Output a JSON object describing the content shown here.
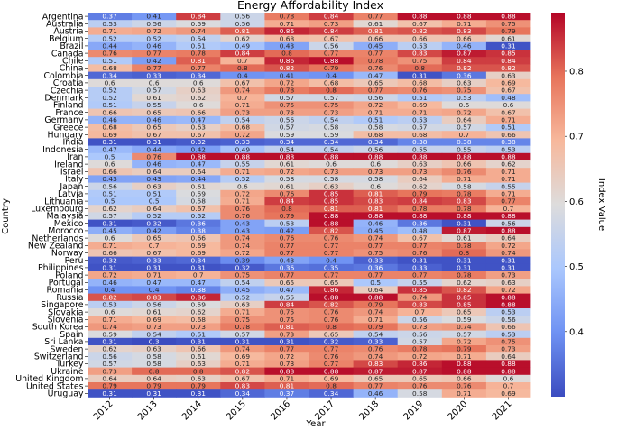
{
  "chart_data": {
    "type": "heatmap",
    "title": "Energy Affordability Index",
    "xlabel": "Year",
    "ylabel": "Country",
    "colorbar_label": "Index Value",
    "colorbar_ticks": [
      0.4,
      0.5,
      0.6,
      0.7,
      0.8
    ],
    "colorbar_tick_labels": [
      "0.4",
      "0.5",
      "0.6",
      "0.7",
      "0.8"
    ],
    "vmin": 0.3,
    "vmax": 0.89,
    "colormap": "coolwarm",
    "cmap_stops": [
      "#3b4cc0",
      "#6f92f3",
      "#aac7fd",
      "#dddcdc",
      "#f7b89c",
      "#e7745b",
      "#b40426"
    ],
    "years": [
      "2012",
      "2013",
      "2014",
      "2015",
      "2016",
      "2017",
      "2018",
      "2019",
      "2020",
      "2021"
    ],
    "countries": [
      "Argentina",
      "Australia",
      "Austria",
      "Belgium",
      "Brazil",
      "Canada",
      "Chile",
      "China",
      "Colombia",
      "Croatia",
      "Czechia",
      "Denmark",
      "Finland",
      "France",
      "Germany",
      "Greece",
      "Hungary",
      "India",
      "Indonesia",
      "Iran",
      "Ireland",
      "Israel",
      "Italy",
      "Japan",
      "Latvia",
      "Lithuania",
      "Luxembourg",
      "Malaysia",
      "Mexico",
      "Morocco",
      "Netherlands",
      "New Zealand",
      "Norway",
      "Peru",
      "Philippines",
      "Poland",
      "Portugal",
      "Romania",
      "Russia",
      "Singapore",
      "Slovakia",
      "Slovenia",
      "South Korea",
      "Spain",
      "Sri Lanka",
      "Sweden",
      "Switzerland",
      "Turkey",
      "Ukraine",
      "United Kingdom",
      "United States",
      "Uruguay"
    ],
    "values": [
      [
        0.37,
        0.41,
        0.84,
        0.56,
        0.78,
        0.84,
        0.77,
        0.88,
        0.88,
        0.88
      ],
      [
        0.53,
        0.56,
        0.59,
        0.56,
        0.71,
        0.73,
        0.61,
        0.67,
        0.71,
        0.75
      ],
      [
        0.71,
        0.72,
        0.74,
        0.81,
        0.86,
        0.84,
        0.81,
        0.82,
        0.83,
        0.79
      ],
      [
        0.52,
        0.52,
        0.54,
        0.62,
        0.68,
        0.67,
        0.66,
        0.66,
        0.66,
        0.61
      ],
      [
        0.44,
        0.46,
        0.51,
        0.49,
        0.43,
        0.56,
        0.45,
        0.53,
        0.46,
        0.31
      ],
      [
        0.76,
        0.77,
        0.78,
        0.84,
        0.8,
        0.77,
        0.77,
        0.83,
        0.87,
        0.85
      ],
      [
        0.51,
        0.42,
        0.81,
        0.7,
        0.86,
        0.88,
        0.78,
        0.75,
        0.84,
        0.84
      ],
      [
        0.68,
        0.77,
        0.77,
        0.8,
        0.82,
        0.79,
        0.76,
        0.8,
        0.82,
        0.82
      ],
      [
        0.34,
        0.33,
        0.34,
        0.4,
        0.41,
        0.4,
        0.47,
        0.31,
        0.36,
        0.63
      ],
      [
        0.6,
        0.6,
        0.6,
        0.67,
        0.72,
        0.68,
        0.65,
        0.68,
        0.63,
        0.69
      ],
      [
        0.52,
        0.57,
        0.63,
        0.74,
        0.78,
        0.8,
        0.77,
        0.76,
        0.75,
        0.67
      ],
      [
        0.52,
        0.61,
        0.62,
        0.7,
        0.57,
        0.57,
        0.56,
        0.51,
        0.53,
        0.48
      ],
      [
        0.51,
        0.55,
        0.6,
        0.71,
        0.75,
        0.75,
        0.72,
        0.69,
        0.6,
        0.6
      ],
      [
        0.66,
        0.65,
        0.66,
        0.73,
        0.73,
        0.73,
        0.71,
        0.71,
        0.72,
        0.67
      ],
      [
        0.46,
        0.46,
        0.47,
        0.54,
        0.56,
        0.54,
        0.51,
        0.53,
        0.64,
        0.71
      ],
      [
        0.68,
        0.65,
        0.63,
        0.68,
        0.57,
        0.58,
        0.58,
        0.57,
        0.57,
        0.51
      ],
      [
        0.69,
        0.67,
        0.67,
        0.72,
        0.59,
        0.59,
        0.68,
        0.68,
        0.7,
        0.66
      ],
      [
        0.31,
        0.31,
        0.32,
        0.33,
        0.34,
        0.34,
        0.34,
        0.38,
        0.38,
        0.38
      ],
      [
        0.47,
        0.44,
        0.42,
        0.49,
        0.54,
        0.54,
        0.56,
        0.55,
        0.55,
        0.53
      ],
      [
        0.5,
        0.76,
        0.88,
        0.88,
        0.88,
        0.88,
        0.88,
        0.88,
        0.88,
        0.88
      ],
      [
        0.6,
        0.46,
        0.47,
        0.55,
        0.61,
        0.6,
        0.6,
        0.63,
        0.66,
        0.62
      ],
      [
        0.66,
        0.64,
        0.64,
        0.71,
        0.72,
        0.73,
        0.73,
        0.73,
        0.76,
        0.71
      ],
      [
        0.43,
        0.43,
        0.44,
        0.52,
        0.58,
        0.58,
        0.58,
        0.64,
        0.71,
        0.71
      ],
      [
        0.56,
        0.63,
        0.61,
        0.6,
        0.61,
        0.63,
        0.6,
        0.62,
        0.58,
        0.55
      ],
      [
        0.51,
        0.51,
        0.59,
        0.72,
        0.76,
        0.85,
        0.81,
        0.79,
        0.78,
        0.71
      ],
      [
        0.5,
        0.5,
        0.58,
        0.71,
        0.84,
        0.85,
        0.83,
        0.84,
        0.83,
        0.77
      ],
      [
        0.62,
        0.64,
        0.67,
        0.76,
        0.8,
        0.81,
        0.81,
        0.78,
        0.78,
        0.7
      ],
      [
        0.57,
        0.52,
        0.52,
        0.76,
        0.79,
        0.88,
        0.88,
        0.88,
        0.88,
        0.88
      ],
      [
        0.31,
        0.32,
        0.36,
        0.43,
        0.53,
        0.88,
        0.46,
        0.36,
        0.31,
        0.56
      ],
      [
        0.45,
        0.42,
        0.38,
        0.43,
        0.42,
        0.82,
        0.45,
        0.48,
        0.87,
        0.88
      ],
      [
        0.6,
        0.65,
        0.66,
        0.74,
        0.76,
        0.76,
        0.74,
        0.67,
        0.61,
        0.64
      ],
      [
        0.71,
        0.7,
        0.69,
        0.74,
        0.77,
        0.77,
        0.77,
        0.77,
        0.78,
        0.72
      ],
      [
        0.66,
        0.67,
        0.69,
        0.72,
        0.77,
        0.77,
        0.75,
        0.76,
        0.8,
        0.74
      ],
      [
        0.32,
        0.33,
        0.34,
        0.39,
        0.43,
        0.4,
        0.33,
        0.31,
        0.31,
        0.31
      ],
      [
        0.31,
        0.31,
        0.31,
        0.32,
        0.36,
        0.35,
        0.36,
        0.33,
        0.31,
        0.31
      ],
      [
        0.72,
        0.71,
        0.7,
        0.75,
        0.77,
        0.77,
        0.77,
        0.77,
        0.78,
        0.73
      ],
      [
        0.46,
        0.47,
        0.47,
        0.54,
        0.65,
        0.65,
        0.5,
        0.55,
        0.62,
        0.63
      ],
      [
        0.4,
        0.4,
        0.38,
        0.45,
        0.47,
        0.86,
        0.64,
        0.85,
        0.82,
        0.72
      ],
      [
        0.82,
        0.83,
        0.86,
        0.52,
        0.55,
        0.88,
        0.88,
        0.74,
        0.85,
        0.88
      ],
      [
        0.53,
        0.56,
        0.59,
        0.63,
        0.84,
        0.82,
        0.79,
        0.83,
        0.85,
        0.88
      ],
      [
        0.6,
        0.61,
        0.62,
        0.71,
        0.75,
        0.76,
        0.74,
        0.7,
        0.65,
        0.53
      ],
      [
        0.71,
        0.69,
        0.68,
        0.75,
        0.75,
        0.76,
        0.71,
        0.56,
        0.59,
        0.56
      ],
      [
        0.74,
        0.73,
        0.73,
        0.78,
        0.81,
        0.8,
        0.79,
        0.73,
        0.74,
        0.66
      ],
      [
        0.59,
        0.54,
        0.51,
        0.57,
        0.73,
        0.65,
        0.54,
        0.56,
        0.57,
        0.53
      ],
      [
        0.31,
        0.3,
        0.31,
        0.31,
        0.31,
        0.32,
        0.33,
        0.57,
        0.72,
        0.75
      ],
      [
        0.62,
        0.63,
        0.66,
        0.74,
        0.77,
        0.77,
        0.76,
        0.78,
        0.79,
        0.73
      ],
      [
        0.56,
        0.58,
        0.61,
        0.69,
        0.72,
        0.76,
        0.74,
        0.72,
        0.71,
        0.64
      ],
      [
        0.57,
        0.58,
        0.63,
        0.71,
        0.73,
        0.77,
        0.83,
        0.86,
        0.88,
        0.88
      ],
      [
        0.73,
        0.8,
        0.8,
        0.82,
        0.88,
        0.88,
        0.87,
        0.87,
        0.88,
        0.88
      ],
      [
        0.64,
        0.64,
        0.63,
        0.67,
        0.71,
        0.69,
        0.65,
        0.65,
        0.66,
        0.6
      ],
      [
        0.79,
        0.79,
        0.79,
        0.83,
        0.81,
        0.8,
        0.77,
        0.76,
        0.76,
        0.7
      ],
      [
        0.31,
        0.31,
        0.31,
        0.34,
        0.37,
        0.34,
        0.46,
        0.58,
        0.71,
        0.69
      ]
    ]
  }
}
